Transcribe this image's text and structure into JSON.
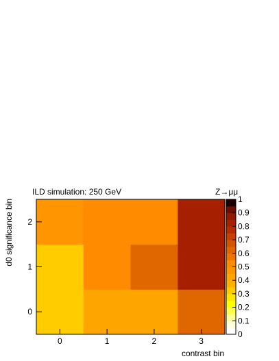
{
  "chart_data": {
    "type": "heatmap",
    "title": "ILD simulation: 250 GeV",
    "annotation": "Z→μμ",
    "xlabel": "contrast bin",
    "ylabel": "d0 significance bin",
    "x_categories": [
      "0",
      "1",
      "2",
      "3"
    ],
    "y_categories": [
      "0",
      "1",
      "2"
    ],
    "values": [
      [
        0.3,
        0.4,
        0.4,
        0.6
      ],
      [
        0.3,
        0.5,
        0.6,
        0.8
      ],
      [
        0.45,
        0.5,
        0.5,
        0.8
      ]
    ],
    "zlim": [
      0,
      1
    ],
    "colorbar_ticks": [
      "0",
      "0.1",
      "0.2",
      "0.3",
      "0.4",
      "0.5",
      "0.6",
      "0.7",
      "0.8",
      "0.9",
      "1"
    ],
    "colorbar_bins": 20,
    "grid": false
  }
}
